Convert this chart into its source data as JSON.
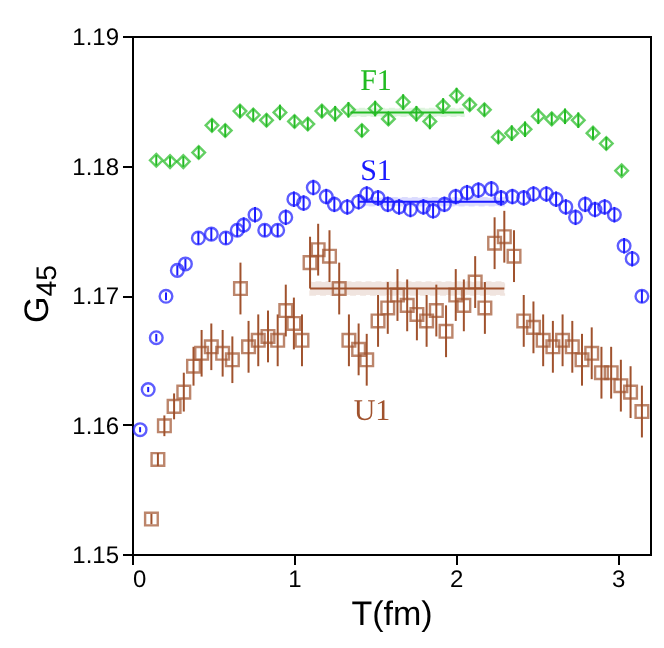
{
  "chart_data": {
    "type": "scatter",
    "xlabel": "T(fm)",
    "ylabel": "G$_{45}$",
    "xlim": [
      0,
      3.2
    ],
    "xticks": [
      0,
      1,
      2,
      3
    ],
    "ylim": [
      1.15,
      1.19
    ],
    "yticks": [
      1.15,
      1.16,
      1.17,
      1.18,
      1.19
    ],
    "grid": false,
    "legend": false,
    "series": [
      {
        "name": "F1",
        "marker": "diamond",
        "color": "#22bb22",
        "x": [
          0.15,
          0.235,
          0.317,
          0.412,
          0.494,
          0.576,
          0.667,
          0.749,
          0.831,
          0.914,
          1.004,
          1.086,
          1.173,
          1.255,
          1.337,
          1.42,
          1.502,
          1.584,
          1.675,
          1.757,
          1.84,
          1.922,
          2.005,
          2.086,
          2.177,
          2.263,
          2.346,
          2.428,
          2.51,
          2.593,
          2.675,
          2.757,
          2.848,
          2.93,
          3.025
        ],
        "values": [
          1.1804,
          1.1803,
          1.1803,
          1.181,
          1.1831,
          1.1827,
          1.1842,
          1.1839,
          1.1835,
          1.1841,
          1.1834,
          1.1832,
          1.1842,
          1.184,
          1.1843,
          1.1827,
          1.1844,
          1.1836,
          1.1849,
          1.184,
          1.1834,
          1.1846,
          1.1854,
          1.1847,
          1.1843,
          1.1822,
          1.1825,
          1.1828,
          1.1838,
          1.1836,
          1.1838,
          1.1835,
          1.1825,
          1.1817,
          1.1796
        ],
        "errors": [
          0.0004,
          0.0004,
          0.0004,
          0.0005,
          0.0005,
          0.0005,
          0.0005,
          0.0005,
          0.0005,
          0.0006,
          0.0005,
          0.0005,
          0.0005,
          0.0006,
          0.0006,
          0.0005,
          0.0006,
          0.0005,
          0.0006,
          0.0006,
          0.0006,
          0.0006,
          0.0006,
          0.0005,
          0.0005,
          0.0005,
          0.0006,
          0.0006,
          0.0006,
          0.0005,
          0.0006,
          0.0006,
          0.0005,
          0.0005,
          0.0004
        ]
      },
      {
        "name": "S1",
        "marker": "circle",
        "color": "#1a1aff",
        "x": [
          0.05,
          0.1,
          0.15,
          0.21,
          0.28,
          0.33,
          0.41,
          0.49,
          0.58,
          0.65,
          0.69,
          0.76,
          0.82,
          0.9,
          0.95,
          1.0,
          1.06,
          1.12,
          1.2,
          1.25,
          1.33,
          1.4,
          1.45,
          1.52,
          1.58,
          1.65,
          1.72,
          1.8,
          1.86,
          1.93,
          2.0,
          2.07,
          2.14,
          2.22,
          2.28,
          2.35,
          2.42,
          2.48,
          2.56,
          2.62,
          2.68,
          2.74,
          2.8,
          2.86,
          2.92,
          2.98,
          3.04,
          3.09,
          3.15
        ],
        "values": [
          1.1596,
          1.1627,
          1.1667,
          1.1699,
          1.1719,
          1.1724,
          1.1744,
          1.1747,
          1.1744,
          1.175,
          1.1754,
          1.1762,
          1.175,
          1.175,
          1.176,
          1.1774,
          1.1771,
          1.1783,
          1.1776,
          1.177,
          1.1768,
          1.1772,
          1.1778,
          1.1775,
          1.177,
          1.1768,
          1.1766,
          1.1768,
          1.1765,
          1.177,
          1.1776,
          1.1779,
          1.1781,
          1.1782,
          1.1775,
          1.1776,
          1.1775,
          1.1778,
          1.1778,
          1.1774,
          1.1768,
          1.176,
          1.177,
          1.1766,
          1.1768,
          1.1762,
          1.1738,
          1.1728,
          1.1699
        ],
        "errors": [
          0.0002,
          0.0002,
          0.0003,
          0.0003,
          0.0004,
          0.0004,
          0.0005,
          0.0005,
          0.0005,
          0.0005,
          0.0006,
          0.0006,
          0.0005,
          0.0005,
          0.0006,
          0.0006,
          0.0006,
          0.0006,
          0.0006,
          0.0006,
          0.0006,
          0.0006,
          0.0006,
          0.0006,
          0.0006,
          0.0006,
          0.0006,
          0.0006,
          0.0006,
          0.0006,
          0.0006,
          0.0006,
          0.0006,
          0.0006,
          0.0006,
          0.0006,
          0.0006,
          0.0006,
          0.0006,
          0.0006,
          0.0006,
          0.0006,
          0.0006,
          0.0006,
          0.0006,
          0.0006,
          0.0006,
          0.0006,
          0.0005
        ]
      },
      {
        "name": "U1",
        "marker": "square",
        "color": "#a0522d",
        "x": [
          0.12,
          0.16,
          0.2,
          0.26,
          0.32,
          0.38,
          0.43,
          0.49,
          0.56,
          0.62,
          0.67,
          0.72,
          0.78,
          0.84,
          0.9,
          0.95,
          1.0,
          1.05,
          1.1,
          1.15,
          1.22,
          1.28,
          1.34,
          1.4,
          1.45,
          1.52,
          1.58,
          1.64,
          1.7,
          1.76,
          1.82,
          1.88,
          1.94,
          2.0,
          2.05,
          2.12,
          2.18,
          2.24,
          2.3,
          2.36,
          2.42,
          2.48,
          2.54,
          2.6,
          2.66,
          2.72,
          2.78,
          2.84,
          2.9,
          2.96,
          3.02,
          3.08,
          3.15
        ],
        "values": [
          1.1527,
          1.1573,
          1.1599,
          1.1614,
          1.1625,
          1.1645,
          1.1655,
          1.166,
          1.1655,
          1.165,
          1.1705,
          1.166,
          1.1665,
          1.1668,
          1.1665,
          1.1688,
          1.1678,
          1.1665,
          1.1725,
          1.1735,
          1.173,
          1.1705,
          1.1665,
          1.1658,
          1.165,
          1.168,
          1.169,
          1.17,
          1.1692,
          1.1685,
          1.168,
          1.1688,
          1.1672,
          1.17,
          1.1692,
          1.171,
          1.169,
          1.174,
          1.1745,
          1.173,
          1.168,
          1.1675,
          1.1665,
          1.166,
          1.1665,
          1.166,
          1.165,
          1.1655,
          1.164,
          1.164,
          1.163,
          1.1625,
          1.161
        ],
        "errors": [
          0.0004,
          0.0005,
          0.0008,
          0.001,
          0.0015,
          0.0015,
          0.0018,
          0.0018,
          0.0018,
          0.0018,
          0.002,
          0.002,
          0.002,
          0.002,
          0.002,
          0.002,
          0.002,
          0.002,
          0.002,
          0.002,
          0.002,
          0.002,
          0.002,
          0.002,
          0.002,
          0.002,
          0.002,
          0.002,
          0.002,
          0.002,
          0.002,
          0.002,
          0.002,
          0.002,
          0.002,
          0.002,
          0.002,
          0.002,
          0.002,
          0.002,
          0.002,
          0.002,
          0.002,
          0.002,
          0.002,
          0.002,
          0.002,
          0.002,
          0.002,
          0.002,
          0.002,
          0.002,
          0.002
        ]
      },
      {
        "type": "line",
        "color": "#22bb22",
        "x": [
          1.35,
          2.05
        ],
        "values": [
          1.1841,
          1.1841
        ],
        "lower": [
          1.1838,
          1.1838
        ],
        "upper": [
          1.1844,
          1.1844
        ]
      },
      {
        "type": "line",
        "color": "#1a1aff",
        "x": [
          1.4,
          2.3
        ],
        "values": [
          1.1772,
          1.1772
        ],
        "lower": [
          1.1769,
          1.1769
        ],
        "upper": [
          1.1775,
          1.1775
        ]
      },
      {
        "type": "line",
        "color": "#a0522d",
        "x": [
          1.1,
          2.3
        ],
        "values": [
          1.1705,
          1.1705
        ],
        "lower": [
          1.17,
          1.17
        ],
        "upper": [
          1.171,
          1.171
        ]
      }
    ]
  }
}
